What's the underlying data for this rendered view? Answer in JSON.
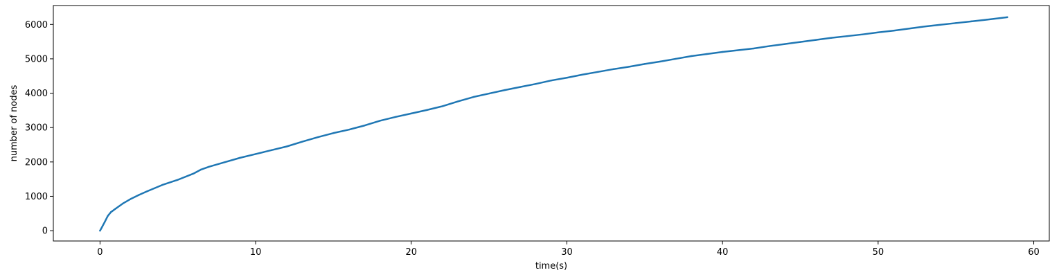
{
  "chart_data": {
    "type": "line",
    "title": "",
    "xlabel": "time(s)",
    "ylabel": "number of nodes",
    "xlim": [
      -3,
      61
    ],
    "ylim": [
      -300,
      6550
    ],
    "xticks": [
      0,
      10,
      20,
      30,
      40,
      50,
      60
    ],
    "yticks": [
      0,
      1000,
      2000,
      3000,
      4000,
      5000,
      6000
    ],
    "grid": false,
    "series": [
      {
        "color": "#1f77b4",
        "x": [
          0,
          0.1,
          0.3,
          0.5,
          0.7,
          1.0,
          1.5,
          2.0,
          2.5,
          3.0,
          4.0,
          5.0,
          6.0,
          6.5,
          7.0,
          8.0,
          9.0,
          10.0,
          11.0,
          12.0,
          13.0,
          14.0,
          15.0,
          16.0,
          17.0,
          18.0,
          19.0,
          20.0,
          21.0,
          22.0,
          23.0,
          24.0,
          25.0,
          26.0,
          27.0,
          28.0,
          29.0,
          30.0,
          31.0,
          32.0,
          33.0,
          34.0,
          35.0,
          36.0,
          37.0,
          38.0,
          39.0,
          40.0,
          41.0,
          42.0,
          43.0,
          44.0,
          45.0,
          46.0,
          47.0,
          48.0,
          49.0,
          50.0,
          51.0,
          52.0,
          53.0,
          54.0,
          55.0,
          56.0,
          57.0,
          58.3
        ],
        "y": [
          0,
          80,
          250,
          430,
          540,
          640,
          800,
          930,
          1040,
          1140,
          1330,
          1480,
          1660,
          1780,
          1860,
          1990,
          2120,
          2230,
          2340,
          2450,
          2590,
          2720,
          2840,
          2940,
          3060,
          3200,
          3310,
          3410,
          3510,
          3620,
          3760,
          3890,
          3990,
          4090,
          4180,
          4270,
          4370,
          4450,
          4540,
          4620,
          4700,
          4770,
          4850,
          4920,
          5000,
          5080,
          5140,
          5200,
          5250,
          5300,
          5370,
          5430,
          5490,
          5550,
          5610,
          5660,
          5710,
          5770,
          5820,
          5880,
          5940,
          5990,
          6040,
          6090,
          6140,
          6210
        ]
      }
    ]
  }
}
